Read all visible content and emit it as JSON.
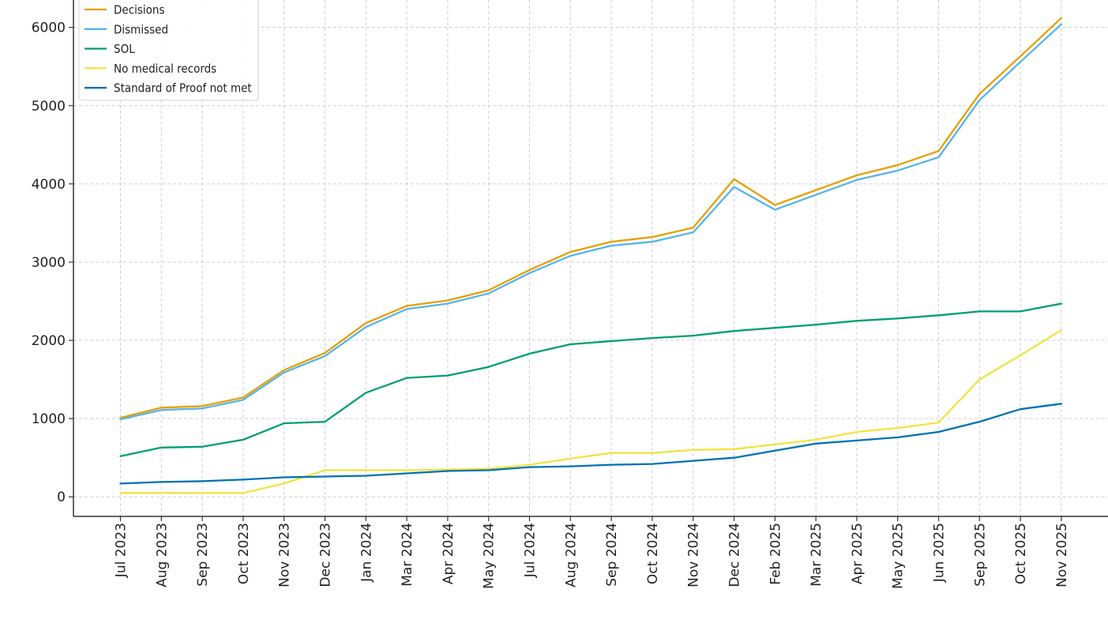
{
  "chart_data": {
    "type": "line",
    "title": "",
    "xlabel": "",
    "ylabel": "",
    "categories": [
      "Jul 2023",
      "Aug 2023",
      "Sep 2023",
      "Oct 2023",
      "Nov 2023",
      "Dec 2023",
      "Jan 2024",
      "Mar 2024",
      "Apr 2024",
      "May 2024",
      "Jul 2024",
      "Aug 2024",
      "Sep 2024",
      "Oct 2024",
      "Nov 2024",
      "Dec 2024",
      "Feb 2025",
      "Mar 2025",
      "Apr 2025",
      "May 2025",
      "Jun 2025",
      "Sep 2025",
      "Oct 2025",
      "Nov 2025"
    ],
    "ylim": [
      -250,
      6350
    ],
    "yticks": [
      0,
      1000,
      2000,
      3000,
      4000,
      5000,
      6000
    ],
    "grid": true,
    "legend_position": "top-left",
    "series": [
      {
        "name": "Decisions",
        "color": "#E69F00",
        "values": [
          1010,
          1140,
          1160,
          1270,
          1620,
          1840,
          2220,
          2440,
          2510,
          2640,
          2900,
          3130,
          3260,
          3320,
          3440,
          4060,
          3730,
          3920,
          4110,
          4240,
          4420,
          5150,
          5630,
          6120
        ]
      },
      {
        "name": "Dismissed",
        "color": "#56B4E9",
        "values": [
          990,
          1110,
          1130,
          1240,
          1590,
          1800,
          2170,
          2400,
          2470,
          2600,
          2860,
          3080,
          3210,
          3260,
          3380,
          3960,
          3670,
          3860,
          4050,
          4170,
          4340,
          5070,
          5560,
          6040
        ]
      },
      {
        "name": "SOL",
        "color": "#009E73",
        "values": [
          520,
          630,
          640,
          730,
          940,
          960,
          1330,
          1520,
          1550,
          1660,
          1830,
          1950,
          1990,
          2030,
          2060,
          2120,
          2160,
          2200,
          2250,
          2280,
          2320,
          2370,
          2370,
          2470
        ]
      },
      {
        "name": "No medical records",
        "color": "#F0E442",
        "values": [
          50,
          50,
          50,
          50,
          170,
          340,
          340,
          340,
          350,
          360,
          410,
          490,
          560,
          560,
          600,
          610,
          670,
          730,
          830,
          880,
          950,
          1500,
          1810,
          2130
        ]
      },
      {
        "name": "Standard of Proof not met",
        "color": "#0072B2",
        "values": [
          170,
          190,
          200,
          220,
          250,
          260,
          270,
          300,
          330,
          340,
          380,
          390,
          410,
          420,
          460,
          500,
          590,
          680,
          720,
          760,
          830,
          960,
          1120,
          1190
        ]
      }
    ]
  }
}
